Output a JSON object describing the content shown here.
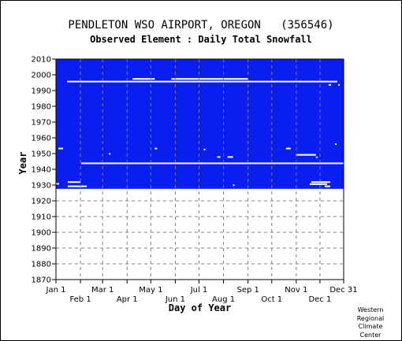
{
  "station_title": "PENDLETON WSO AIRPORT, OREGON   (356546)",
  "element_title": "Observed Element : Daily Total Snowfall",
  "credit": [
    "Western",
    "Regional",
    "Climate",
    "Center"
  ],
  "colors": {
    "data_fill": "#0a1fef",
    "background": "#ffffff",
    "gap": "#ffffff",
    "grid": "#808080"
  },
  "chart_data": {
    "type": "heatmap",
    "title": "Observed Element : Daily Total Snowfall",
    "xlabel": "Day of Year",
    "ylabel": "Year",
    "xlim": [
      1,
      365
    ],
    "ylim": [
      1870,
      2010
    ],
    "x_ticks_upper": [
      {
        "label": "Jan 1",
        "day": 1
      },
      {
        "label": "Mar 1",
        "day": 60
      },
      {
        "label": "May 1",
        "day": 121
      },
      {
        "label": "Jul 1",
        "day": 182
      },
      {
        "label": "Sep 1",
        "day": 244
      },
      {
        "label": "Nov 1",
        "day": 305
      },
      {
        "label": "Dec 31",
        "day": 365
      }
    ],
    "x_ticks_lower": [
      {
        "label": "Feb 1",
        "day": 32
      },
      {
        "label": "Apr 1",
        "day": 91
      },
      {
        "label": "Jun 1",
        "day": 152
      },
      {
        "label": "Aug 1",
        "day": 213
      },
      {
        "label": "Oct 1",
        "day": 274
      },
      {
        "label": "Dec 1",
        "day": 335
      }
    ],
    "y_ticks": [
      1870,
      1880,
      1890,
      1900,
      1910,
      1920,
      1930,
      1940,
      1950,
      1960,
      1970,
      1980,
      1990,
      2000,
      2010
    ],
    "data_coverage": {
      "start_year": 1927.6,
      "end_year": 2010,
      "start_day": 1,
      "end_day": 365
    },
    "missing_spans": [
      {
        "year": 1943.8,
        "day_start": 33,
        "day_end": 365
      },
      {
        "year": 1995.7,
        "day_start": 15,
        "day_end": 357
      },
      {
        "year": 1997.4,
        "day_start": 98,
        "day_end": 126
      },
      {
        "year": 1997.4,
        "day_start": 147,
        "day_end": 244
      },
      {
        "year": 1930.8,
        "day_start": 1,
        "day_end": 5
      },
      {
        "year": 1929.2,
        "day_start": 16,
        "day_end": 40
      },
      {
        "year": 1931.9,
        "day_start": 16,
        "day_end": 32
      },
      {
        "year": 1931.9,
        "day_start": 324,
        "day_end": 348
      },
      {
        "year": 1930.6,
        "day_start": 322,
        "day_end": 344
      },
      {
        "year": 1929.2,
        "day_start": 341,
        "day_end": 348
      },
      {
        "year": 1953.2,
        "day_start": 4,
        "day_end": 10
      },
      {
        "year": 1953.2,
        "day_start": 126,
        "day_end": 129
      },
      {
        "year": 1953.2,
        "day_start": 292,
        "day_end": 298
      },
      {
        "year": 1952.6,
        "day_start": 188,
        "day_end": 190
      },
      {
        "year": 1947.8,
        "day_start": 205,
        "day_end": 209
      },
      {
        "year": 1947.8,
        "day_start": 218,
        "day_end": 225
      },
      {
        "year": 1949.2,
        "day_start": 305,
        "day_end": 330
      },
      {
        "year": 1947.6,
        "day_start": 330,
        "day_end": 332
      },
      {
        "year": 1949.8,
        "day_start": 68,
        "day_end": 70
      },
      {
        "year": 1956,
        "day_start": 354,
        "day_end": 356
      },
      {
        "year": 1993.6,
        "day_start": 346,
        "day_end": 349
      },
      {
        "year": 1993.6,
        "day_start": 358,
        "day_end": 360
      },
      {
        "year": 1929.9,
        "day_start": 225,
        "day_end": 227
      }
    ]
  }
}
